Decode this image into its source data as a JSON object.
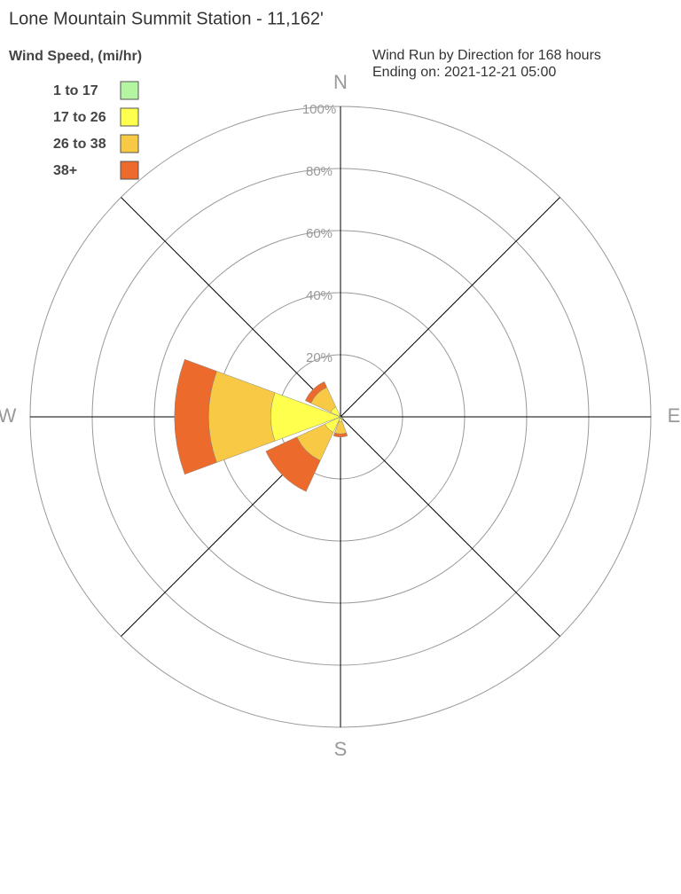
{
  "chart_data": {
    "type": "windrose",
    "title": "Lone Mountain Summit Station - 11,162'",
    "legend_title": "Wind Speed, (mi/hr)",
    "subtitle": [
      "Wind Run by Direction for 168 hours",
      "Ending on: 2021-12-21 05:00"
    ],
    "categories": [
      "N",
      null,
      "E",
      null,
      "S",
      null,
      "W",
      null
    ],
    "series": [
      {
        "name": "1 to 17",
        "color": "#b3f5a0",
        "values": [
          0,
          0,
          0,
          0,
          0.5,
          0.5,
          0.5,
          0.5
        ]
      },
      {
        "name": "17 to 26",
        "color": "#ffff4d",
        "values": [
          0,
          0,
          0,
          0.5,
          1,
          5,
          22,
          3
        ]
      },
      {
        "name": "26 to 38",
        "color": "#f7c944",
        "values": [
          0,
          0,
          0,
          0.5,
          4,
          10,
          20,
          7
        ]
      },
      {
        "name": "38+",
        "color": "#ec6a2c",
        "values": [
          0,
          0,
          0,
          0,
          1,
          11,
          11,
          2
        ]
      }
    ],
    "rlim": [
      0,
      100
    ],
    "rticks": [
      {
        "value": 20,
        "label": "20%"
      },
      {
        "value": 40,
        "label": "40%"
      },
      {
        "value": 60,
        "label": "60%"
      },
      {
        "value": 80,
        "label": "80%"
      },
      {
        "value": 100,
        "label": "100%"
      }
    ],
    "grid": true
  }
}
